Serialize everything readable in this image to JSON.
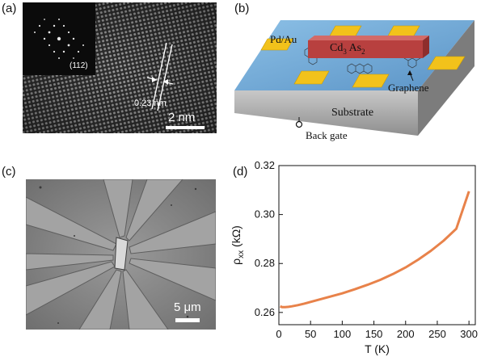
{
  "panels": {
    "a": {
      "label": "(a)",
      "diffraction_label": "(112)",
      "spacing_label": "0.23 nm",
      "scale_bar_label": "2 nm"
    },
    "b": {
      "label": "(b)",
      "contact_label": "Pd/Au",
      "nanoplate_label_main": "Cd",
      "nanoplate_sub1": "3",
      "nanoplate_label_mid": " As",
      "nanoplate_sub2": "2",
      "graphene_label": "Graphene",
      "substrate_label": "Substrate",
      "back_gate_label": "Back gate",
      "colors": {
        "substrate_top": "#6fa8d6",
        "contact": "#f2c21b",
        "nanoplate": "#b8403f",
        "substrate_side": "#a9a9a9"
      }
    },
    "c": {
      "label": "(c)",
      "scale_bar_label": "5 μm"
    },
    "d": {
      "label": "(d)"
    }
  },
  "chart_data": {
    "type": "line",
    "title": "",
    "xlabel": "T (K)",
    "ylabel_main": "ρ",
    "ylabel_sub": "xx",
    "ylabel_unit": " (kΩ)",
    "xlim": [
      0,
      310
    ],
    "ylim": [
      0.255,
      0.32
    ],
    "xticks": [
      0,
      50,
      100,
      150,
      200,
      250,
      300
    ],
    "yticks": [
      0.26,
      0.28,
      0.3,
      0.32
    ],
    "ytick_labels": [
      "0.26",
      "0.28",
      "0.30",
      "0.32"
    ],
    "grid": false,
    "series": [
      {
        "color": "#e8824a",
        "x": [
          2,
          5,
          10,
          15,
          20,
          30,
          40,
          50,
          60,
          80,
          100,
          120,
          140,
          160,
          180,
          200,
          220,
          240,
          260,
          280,
          300
        ],
        "y": [
          0.2625,
          0.2622,
          0.2622,
          0.2623,
          0.2625,
          0.263,
          0.2636,
          0.2643,
          0.265,
          0.2664,
          0.2678,
          0.2695,
          0.2713,
          0.2733,
          0.2757,
          0.2784,
          0.2816,
          0.2852,
          0.2893,
          0.2942,
          0.3095
        ]
      }
    ]
  }
}
